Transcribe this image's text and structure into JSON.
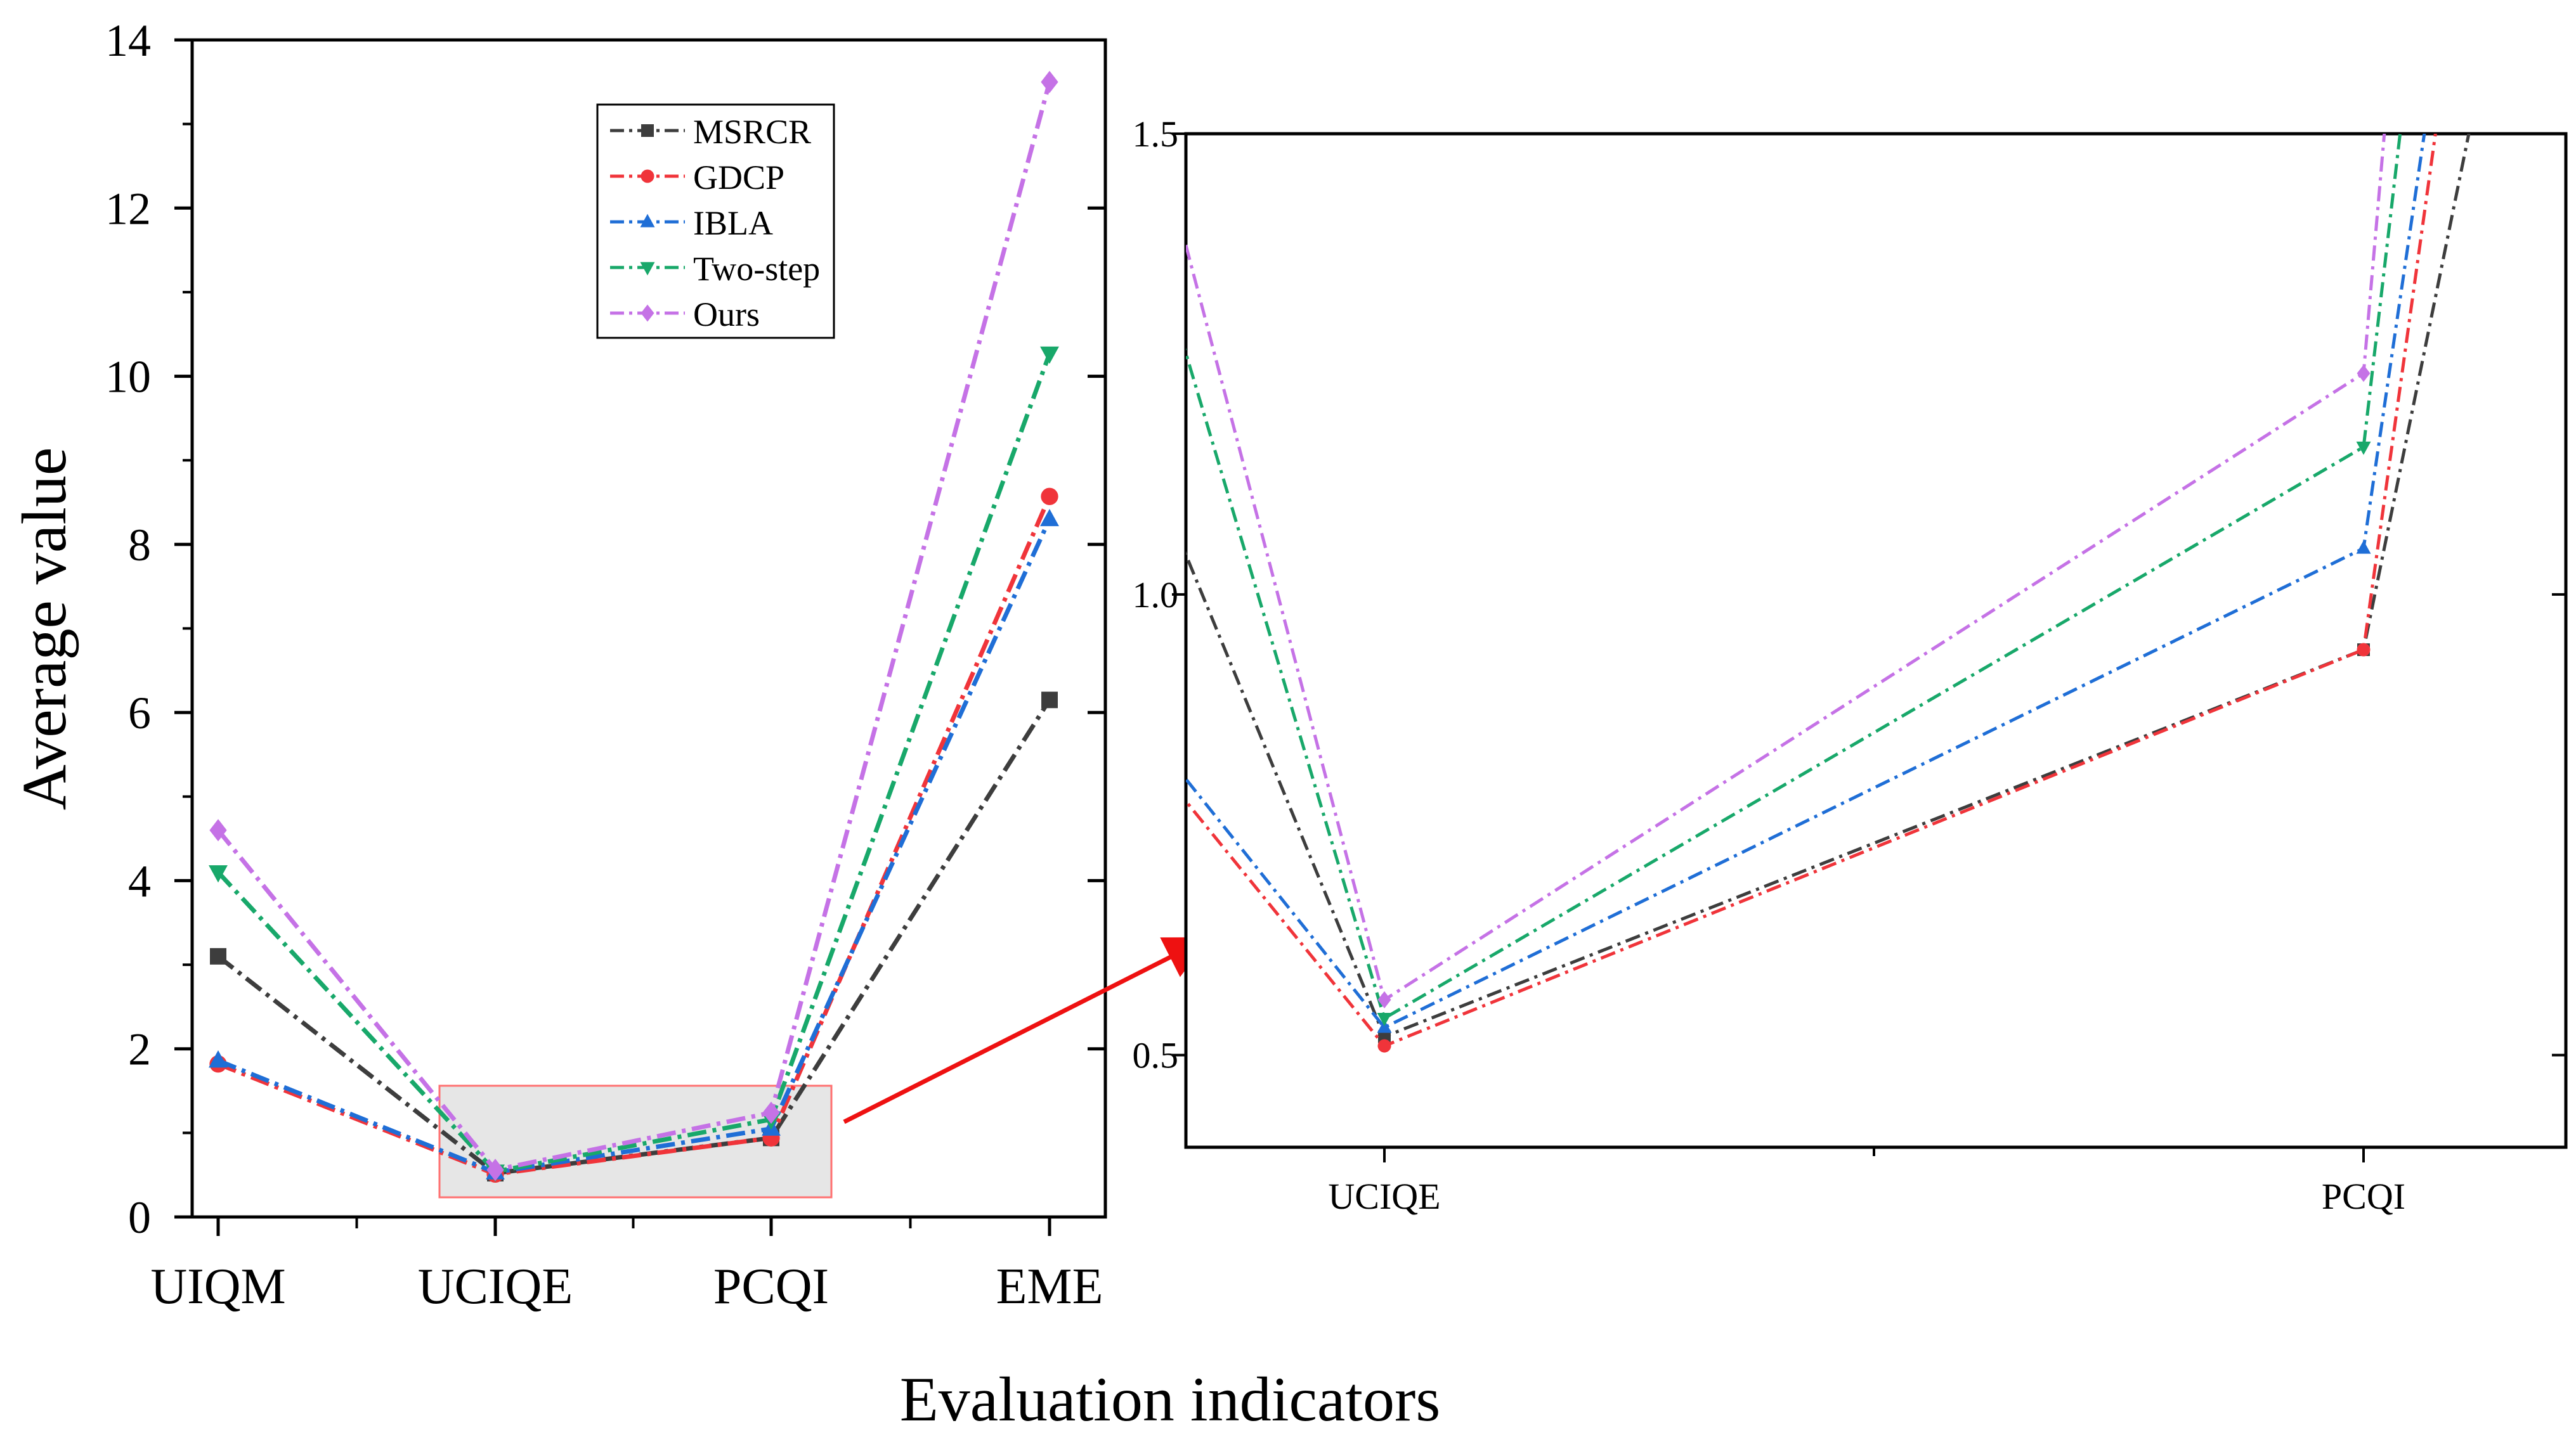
{
  "xlabel": "Evaluation indicators",
  "ylabel": "Average value",
  "legend": [
    {
      "name": "MSRCR",
      "color": "#3d3d3d",
      "marker": "square"
    },
    {
      "name": "GDCP",
      "color": "#f0343a",
      "marker": "circle"
    },
    {
      "name": "IBLA",
      "color": "#1f6ed6",
      "marker": "triangle-up"
    },
    {
      "name": "Two-step",
      "color": "#18a86a",
      "marker": "triangle-down"
    },
    {
      "name": "Ours",
      "color": "#c572e6",
      "marker": "diamond"
    }
  ],
  "colors": {
    "highlight_box": "#ff7070",
    "highlight_fill": "#e6e6e6",
    "arrow": "#ee1111"
  },
  "chart_data": [
    {
      "type": "line",
      "title": "",
      "xlabel": "Evaluation indicators",
      "ylabel": "Average value",
      "categories": [
        "UIQM",
        "UCIQE",
        "PCQI",
        "EME"
      ],
      "ylim": [
        0,
        14
      ],
      "yticks": [
        "0",
        "2",
        "4",
        "6",
        "8",
        "10",
        "12",
        "14"
      ],
      "legend_position": "top-right",
      "series": [
        {
          "name": "MSRCR",
          "values": [
            3.1,
            0.52,
            0.94,
            6.15
          ]
        },
        {
          "name": "GDCP",
          "values": [
            1.82,
            0.51,
            0.94,
            8.57
          ]
        },
        {
          "name": "IBLA",
          "values": [
            1.86,
            0.53,
            1.05,
            8.3
          ]
        },
        {
          "name": "Two-step",
          "values": [
            4.1,
            0.54,
            1.16,
            10.27
          ]
        },
        {
          "name": "Ours",
          "values": [
            4.6,
            0.56,
            1.24,
            13.5
          ]
        }
      ]
    },
    {
      "type": "line",
      "title": "",
      "categories": [
        "UCIQE",
        "PCQI"
      ],
      "ylim": [
        0.4,
        1.5
      ],
      "yticks": [
        "0.5",
        "1.0",
        "1.5"
      ],
      "series": [
        {
          "name": "MSRCR",
          "values": [
            0.52,
            0.94
          ]
        },
        {
          "name": "GDCP",
          "values": [
            0.51,
            0.94
          ]
        },
        {
          "name": "IBLA",
          "values": [
            0.53,
            1.05
          ]
        },
        {
          "name": "Two-step",
          "values": [
            0.54,
            1.16
          ]
        },
        {
          "name": "Ours",
          "values": [
            0.56,
            1.24
          ]
        }
      ]
    }
  ]
}
